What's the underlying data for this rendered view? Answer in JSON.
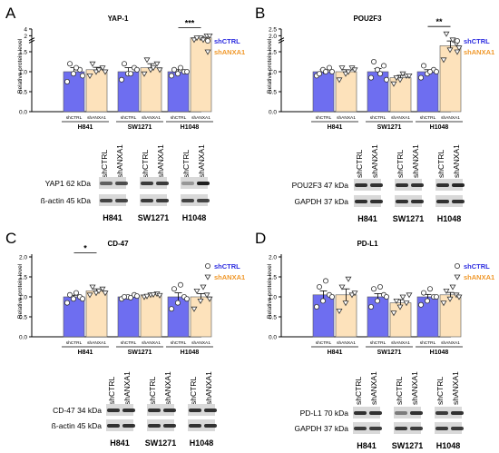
{
  "colors": {
    "ctrl": "#6e6ef0",
    "anxa": "#fde2bb",
    "ctrl_text": "#2b2be0",
    "anxa_text": "#f0982a",
    "band": "#1e1e1e"
  },
  "legend": {
    "ctrl": "shCTRL",
    "anxa": "shANXA1"
  },
  "common": {
    "ylabel": "Relative protein level",
    "lanes": [
      "shCTRL",
      "shANXA1"
    ],
    "lines": [
      "H841",
      "SW1271",
      "H1048"
    ]
  },
  "chart_data": [
    {
      "panel": "A",
      "title": "YAP-1",
      "type": "bar",
      "categories": [
        "H841",
        "SW1271",
        "H1048"
      ],
      "series": [
        {
          "name": "shCTRL",
          "values": [
            1.0,
            1.0,
            1.0
          ],
          "sem": [
            0.1,
            0.1,
            0.05
          ],
          "points": [
            [
              0.75,
              0.95,
              1.05,
              1.2,
              1.1,
              0.9
            ],
            [
              0.8,
              0.95,
              1.1,
              1.2,
              0.95,
              1.05
            ],
            [
              0.9,
              0.95,
              1.0,
              1.05,
              1.1,
              1.0
            ]
          ]
        },
        {
          "name": "shANXA1",
          "values": [
            1.05,
            1.1,
            1.85
          ],
          "sem": [
            0.06,
            0.1,
            0.03
          ],
          "points": [
            [
              0.9,
              1.0,
              1.1,
              1.2,
              1.05,
              1.0
            ],
            [
              0.95,
              1.05,
              1.2,
              1.3,
              1.1,
              1.05
            ],
            [
              1.8,
              1.85,
              1.9,
              1.85,
              1.8,
              1.9
            ]
          ]
        }
      ],
      "yticks": [
        "0.0",
        "0.5",
        "1.0",
        "1.5",
        "2",
        "4"
      ],
      "ylim": [
        0,
        2
      ],
      "axis_break": true,
      "sig": [
        {
          "group": "H1048",
          "label": "***"
        }
      ]
    },
    {
      "panel": "B",
      "title": "POU2F3",
      "type": "bar",
      "categories": [
        "H841",
        "SW1271",
        "H1048"
      ],
      "series": [
        {
          "name": "shCTRL",
          "values": [
            1.0,
            1.0,
            1.0
          ],
          "sem": [
            0.05,
            0.08,
            0.05
          ],
          "points": [
            [
              0.9,
              1.05,
              1.1,
              0.95,
              1.0,
              1.0
            ],
            [
              0.85,
              1.05,
              1.15,
              1.25,
              0.95,
              0.8
            ],
            [
              0.85,
              0.95,
              1.05,
              1.15,
              1.0,
              1.0
            ]
          ]
        },
        {
          "name": "shANXA1",
          "values": [
            1.0,
            0.85,
            1.65
          ],
          "sem": [
            0.05,
            0.06,
            0.12
          ],
          "points": [
            [
              0.8,
              0.95,
              1.1,
              1.1,
              1.0,
              1.05
            ],
            [
              0.7,
              0.8,
              0.9,
              0.85,
              0.95,
              0.9
            ],
            [
              1.3,
              1.55,
              1.7,
              1.95,
              1.8,
              1.6
            ]
          ]
        }
      ],
      "yticks": [
        "0.0",
        "0.5",
        "1.0",
        "1.5",
        "2.0",
        "2.5"
      ],
      "ylim": [
        0,
        2
      ],
      "axis_break": true,
      "sig": [
        {
          "group": "H1048",
          "label": "**"
        }
      ]
    },
    {
      "panel": "C",
      "title": "CD-47",
      "type": "bar",
      "categories": [
        "H841",
        "SW1271",
        "H1048"
      ],
      "series": [
        {
          "name": "shCTRL",
          "values": [
            1.0,
            1.0,
            1.0
          ],
          "sem": [
            0.04,
            0.02,
            0.1
          ],
          "points": [
            [
              0.85,
              0.95,
              1.0,
              1.05,
              1.1,
              0.95
            ],
            [
              0.95,
              1.0,
              1.05,
              1.0,
              0.98,
              1.02
            ],
            [
              0.7,
              0.85,
              1.0,
              1.2,
              1.3,
              0.95
            ]
          ]
        },
        {
          "name": "shANXA1",
          "values": [
            1.15,
            1.05,
            1.0
          ],
          "sem": [
            0.05,
            0.02,
            0.08
          ],
          "points": [
            [
              1.05,
              1.1,
              1.2,
              1.25,
              1.15,
              1.1
            ],
            [
              1.0,
              1.05,
              1.08,
              1.02,
              1.06,
              1.04
            ],
            [
              0.7,
              0.9,
              1.05,
              1.15,
              1.25,
              0.95
            ]
          ]
        }
      ],
      "yticks": [
        "0.0",
        "0.5",
        "1.0",
        "1.5",
        "2.0"
      ],
      "ylim": [
        0,
        2
      ],
      "axis_break": false,
      "sig": [
        {
          "group": "H841",
          "label": "*"
        }
      ]
    },
    {
      "panel": "D",
      "title": "PD-L1",
      "type": "bar",
      "categories": [
        "H841",
        "SW1271",
        "H1048"
      ],
      "series": [
        {
          "name": "shCTRL",
          "values": [
            1.05,
            1.0,
            1.0
          ],
          "sem": [
            0.1,
            0.08,
            0.06
          ],
          "points": [
            [
              0.75,
              0.9,
              1.05,
              1.25,
              1.4,
              1.0
            ],
            [
              0.75,
              0.9,
              1.05,
              1.2,
              1.25,
              1.0
            ],
            [
              0.8,
              0.9,
              1.0,
              1.1,
              1.2,
              1.0
            ]
          ]
        },
        {
          "name": "shANXA1",
          "values": [
            1.05,
            0.85,
            1.05
          ],
          "sem": [
            0.15,
            0.08,
            0.06
          ],
          "points": [
            [
              0.65,
              0.85,
              1.05,
              1.25,
              1.45,
              1.1
            ],
            [
              0.6,
              0.75,
              0.85,
              0.9,
              1.0,
              1.05
            ],
            [
              0.85,
              0.95,
              1.05,
              1.15,
              1.25,
              1.0
            ]
          ]
        }
      ],
      "yticks": [
        "0.0",
        "0.5",
        "1.0",
        "1.5",
        "2.0"
      ],
      "ylim": [
        0,
        2
      ],
      "axis_break": false,
      "sig": []
    }
  ],
  "blots": [
    {
      "panel": "A",
      "rows": [
        "YAP1 62 kDa",
        "ß-actin 45 kDa"
      ],
      "lines": [
        "H841",
        "SW1271",
        "H1048"
      ],
      "intensity": [
        [
          0.65,
          0.75,
          0.85,
          0.85,
          0.35,
          1.0
        ],
        [
          0.8,
          0.8,
          0.85,
          0.85,
          0.8,
          0.8
        ]
      ]
    },
    {
      "panel": "B",
      "rows": [
        "POU2F3 47 kDa",
        "GAPDH 37 kDa"
      ],
      "lines": [
        "H841",
        "SW1271",
        "H1048"
      ],
      "intensity": [
        [
          0.9,
          0.9,
          0.9,
          0.9,
          0.9,
          0.95
        ],
        [
          0.9,
          0.9,
          0.9,
          0.9,
          0.9,
          0.9
        ]
      ]
    },
    {
      "panel": "C",
      "rows": [
        "CD-47 34 kDa",
        "ß-actin 45 kDa"
      ],
      "lines": [
        "H841",
        "SW1271",
        "H1048"
      ],
      "intensity": [
        [
          0.9,
          0.9,
          0.9,
          0.9,
          0.9,
          0.9
        ],
        [
          0.9,
          0.9,
          0.9,
          0.9,
          0.9,
          0.9
        ]
      ]
    },
    {
      "panel": "D",
      "rows": [
        "PD-L1 70 kDa",
        "GAPDH 37 kDa"
      ],
      "lines": [
        "H841",
        "SW1271",
        "H1048"
      ],
      "intensity": [
        [
          0.9,
          0.9,
          0.5,
          0.9,
          0.85,
          0.9
        ],
        [
          0.85,
          0.85,
          0.85,
          0.85,
          0.85,
          0.85
        ]
      ]
    }
  ]
}
